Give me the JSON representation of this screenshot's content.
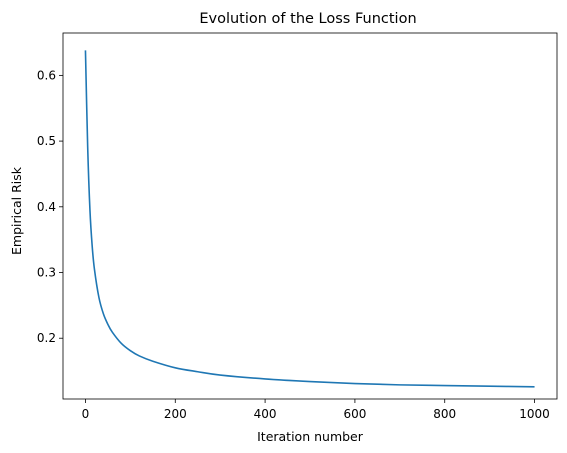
{
  "chart_data": {
    "type": "line",
    "title": "Evolution of the Loss Function",
    "xlabel": "Iteration number",
    "ylabel": "Empirical Risk",
    "xlim": [
      -50,
      1050
    ],
    "ylim": [
      0.1075,
      0.6645
    ],
    "x_ticks": [
      0,
      200,
      400,
      600,
      800,
      1000
    ],
    "x_tick_labels": [
      "0",
      "200",
      "400",
      "600",
      "800",
      "1000"
    ],
    "y_ticks": [
      0.2,
      0.3,
      0.4,
      0.5,
      0.6
    ],
    "y_tick_labels": [
      "0.2",
      "0.3",
      "0.4",
      "0.5",
      "0.6"
    ],
    "grid": false,
    "legend": "none",
    "series": [
      {
        "color": "#1f77b4",
        "x": [
          0,
          5,
          10,
          15,
          20,
          30,
          40,
          50,
          60,
          80,
          100,
          120,
          150,
          200,
          250,
          300,
          400,
          500,
          600,
          700,
          800,
          900,
          1000
        ],
        "y": [
          0.638,
          0.49,
          0.395,
          0.34,
          0.305,
          0.262,
          0.237,
          0.221,
          0.209,
          0.192,
          0.181,
          0.173,
          0.165,
          0.155,
          0.149,
          0.144,
          0.138,
          0.134,
          0.131,
          0.129,
          0.128,
          0.127,
          0.126
        ]
      }
    ]
  }
}
